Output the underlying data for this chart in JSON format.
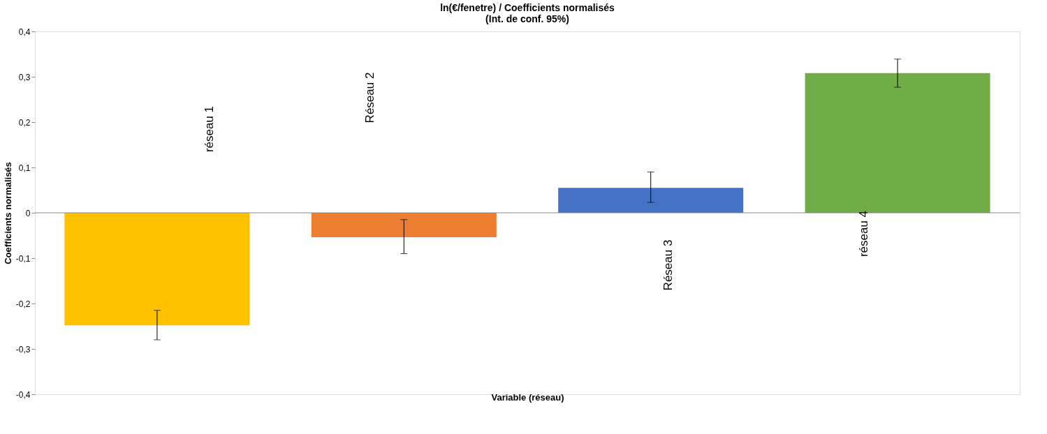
{
  "chart_data": {
    "type": "bar",
    "title": [
      "ln(€/fenetre) / Coefficients normalisés",
      "(Int. de conf. 95%)"
    ],
    "xlabel": "Variable (réseau)",
    "ylabel": "Coefficients normalisés",
    "categories": [
      null,
      null,
      null,
      null
    ],
    "values": [
      -0.248,
      -0.054,
      0.055,
      0.308
    ],
    "colors": [
      "#ffc000",
      "#ed7d31",
      "#4472c4",
      "#70ad47"
    ],
    "errors": [
      [
        -0.28,
        -0.215
      ],
      [
        -0.09,
        -0.015
      ],
      [
        0.023,
        0.09
      ],
      [
        0.277,
        0.339
      ]
    ],
    "annotations": [
      "réseau 1",
      "Réseau 2",
      "Réseau 3",
      "réseau 4"
    ],
    "ylim": [
      -0.4,
      0.4
    ],
    "yticks": [
      {
        "value": -0.4,
        "label": "-0,4"
      },
      {
        "value": -0.3,
        "label": "-0,3"
      },
      {
        "value": -0.2,
        "label": "-0,2"
      },
      {
        "value": -0.1,
        "label": "-0,1"
      },
      {
        "value": 0,
        "label": "0"
      },
      {
        "value": 0.1,
        "label": "0,1"
      },
      {
        "value": 0.2,
        "label": "0,2"
      },
      {
        "value": 0.3,
        "label": "0,3"
      },
      {
        "value": 0.4,
        "label": "0,4"
      }
    ],
    "line_style": "solid"
  }
}
